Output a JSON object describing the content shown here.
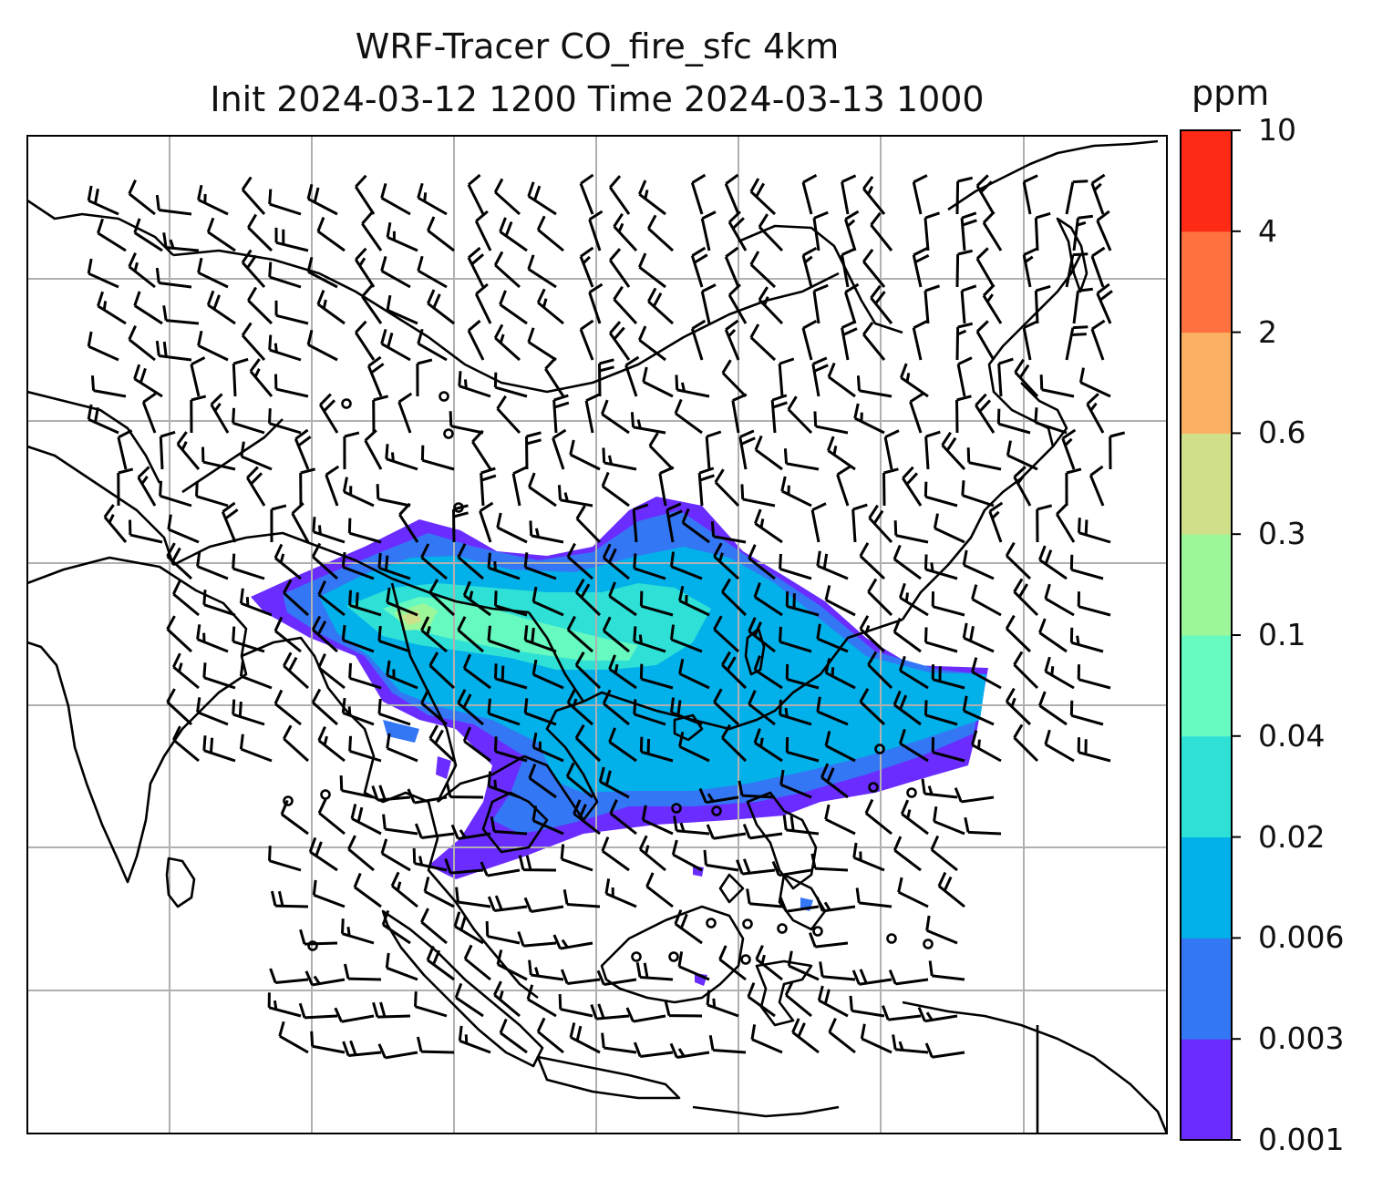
{
  "figure": {
    "title_line1": "WRF-Tracer CO_fire_sfc 4km",
    "title_line2": "Init 2024-03-12 1200 Time 2024-03-13 1000"
  },
  "colorbar": {
    "units": "ppm",
    "levels": [
      "0.001",
      "0.003",
      "0.006",
      "0.02",
      "0.04",
      "0.1",
      "0.3",
      "0.6",
      "2",
      "4",
      "10"
    ],
    "colors": [
      "#6a2cff",
      "#3477f5",
      "#02b0ea",
      "#2ee0d6",
      "#66f9c0",
      "#9cf79a",
      "#d0e08a",
      "#fbb064",
      "#ff7240",
      "#ff2a16"
    ]
  },
  "map": {
    "features": [
      "coastlines",
      "country-borders",
      "gridlines",
      "wind-barbs"
    ],
    "field": "CO_fire_sfc concentration",
    "colors": {
      "coast": "#000000",
      "grid": "#b0b0b0",
      "barb": "#000000"
    }
  }
}
